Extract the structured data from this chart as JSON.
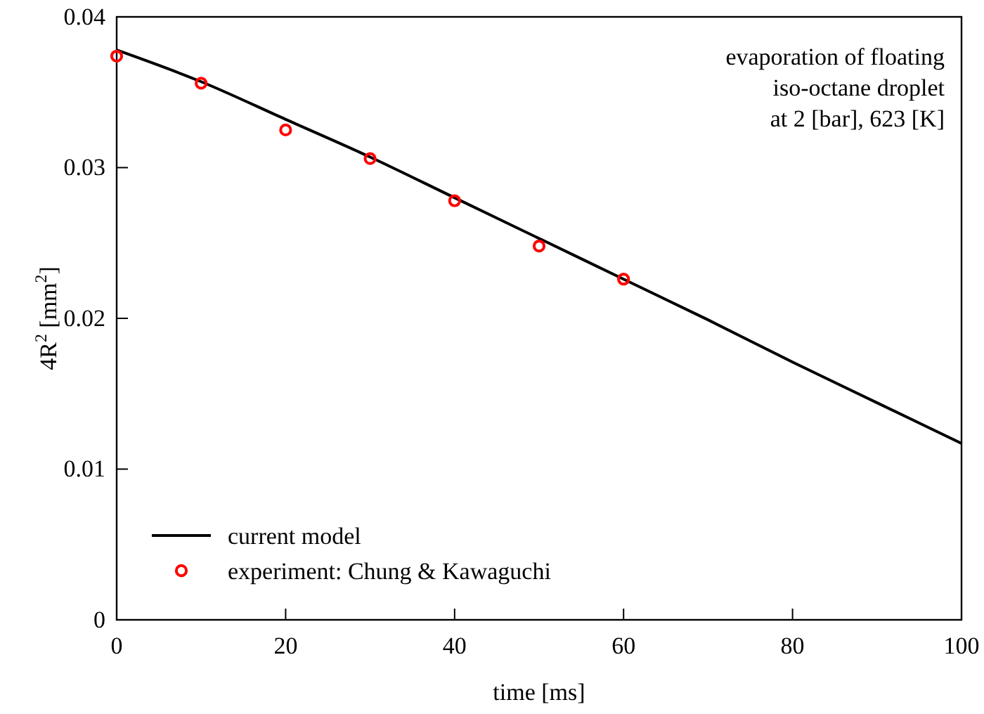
{
  "chart_data": {
    "type": "line",
    "xlabel": "time [ms]",
    "ylabel": "4R$^{2}$ [mm$^{2}$]",
    "annotations": [
      "evaporation of floating\niso-octane droplet\nat 2 [bar], 623 [K]"
    ],
    "xlim": [
      0,
      100
    ],
    "xticks": [
      0,
      20,
      40,
      60,
      80,
      100
    ],
    "ylim": [
      0,
      0.04
    ],
    "yticks": [
      0,
      0.01,
      0.02,
      0.03,
      0.04
    ],
    "grid": false,
    "legend": "bottom left",
    "series": [
      {
        "name": "current model",
        "color": "#000000",
        "marker": "none",
        "line_style": "solid",
        "x": [
          0,
          10,
          20,
          30,
          40,
          50,
          60,
          70,
          80,
          90,
          100
        ],
        "values": [
          0.0378,
          0.0357,
          0.0332,
          0.0307,
          0.028,
          0.0253,
          0.0226,
          0.0199,
          0.0171,
          0.0144,
          0.0117
        ]
      },
      {
        "name": "experiment: Chung & Kawaguchi",
        "type": "scatter",
        "color": "#ff0000",
        "marker": "circle",
        "x": [
          0,
          10,
          20,
          30,
          40,
          50,
          60
        ],
        "values": [
          0.0374,
          0.0356,
          0.0325,
          0.0306,
          0.0278,
          0.0248,
          0.0226
        ]
      }
    ]
  }
}
